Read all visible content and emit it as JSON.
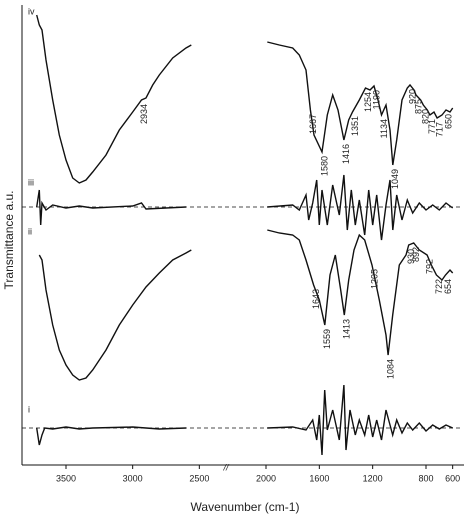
{
  "chart_data": {
    "type": "line",
    "xlabel": "Wavenumber (cm-1)",
    "ylabel": "Transmittance a.u.",
    "xlim": [
      3830,
      530
    ],
    "xticks": [
      3500,
      3000,
      2500,
      2000,
      1600,
      1200,
      800,
      600
    ],
    "ylim": [
      0,
      460
    ],
    "break_at": 2300,
    "break_label": "//",
    "color": "#111111",
    "series": [
      {
        "name": "iv",
        "x": [
          3720,
          3700,
          3680,
          3650,
          3600,
          3550,
          3500,
          3450,
          3400,
          3350,
          3300,
          3200,
          3100,
          3000,
          2934,
          2900,
          2850,
          2800,
          2700,
          2600,
          2560,
          null,
          1990,
          1900,
          1800,
          1750,
          1700,
          1667,
          1640,
          1580,
          1540,
          1500,
          1460,
          1416,
          1380,
          1351,
          1300,
          1254,
          1220,
          1190,
          1160,
          1134,
          1100,
          1070,
          1049,
          1020,
          980,
          940,
          920,
          890,
          875,
          840,
          820,
          790,
          771,
          740,
          717,
          680,
          650,
          620,
          600
        ],
        "values": [
          450,
          440,
          435,
          405,
          365,
          330,
          305,
          287,
          282,
          285,
          293,
          310,
          335,
          353,
          365,
          367,
          380,
          390,
          407,
          417,
          420,
          null,
          423,
          420,
          417,
          410,
          395,
          355,
          330,
          313,
          350,
          370,
          355,
          325,
          345,
          353,
          365,
          377,
          375,
          379,
          365,
          350,
          360,
          335,
          300,
          325,
          365,
          377,
          380,
          375,
          370,
          365,
          360,
          355,
          350,
          353,
          347,
          350,
          355,
          353,
          357
        ],
        "peaks": [
          2934,
          1667,
          1580,
          1416,
          1351,
          1254,
          1190,
          1134,
          1049,
          920,
          875,
          820,
          771,
          717,
          650
        ]
      },
      {
        "name": "iii",
        "baseline": 258,
        "x": [
          3720,
          3700,
          3690,
          3680,
          3650,
          3600,
          3500,
          3400,
          3300,
          3000,
          2934,
          2900,
          2600,
          null,
          1990,
          1800,
          1750,
          1700,
          1680,
          1650,
          1620,
          1600,
          1580,
          1540,
          1500,
          1450,
          1416,
          1390,
          1360,
          1330,
          1300,
          1260,
          1230,
          1200,
          1170,
          1134,
          1100,
          1070,
          1049,
          1020,
          980,
          940,
          900,
          850,
          800,
          750,
          700,
          650,
          600
        ],
        "values": [
          258,
          275,
          240,
          262,
          255,
          260,
          257,
          259,
          257,
          259,
          262,
          256,
          258,
          null,
          258,
          260,
          255,
          270,
          245,
          262,
          285,
          240,
          275,
          240,
          280,
          250,
          290,
          235,
          275,
          240,
          265,
          230,
          275,
          240,
          270,
          225,
          260,
          285,
          235,
          270,
          245,
          265,
          252,
          262,
          255,
          260,
          255,
          262,
          257
        ]
      },
      {
        "name": "ii",
        "x": [
          3700,
          3680,
          3650,
          3600,
          3550,
          3500,
          3450,
          3400,
          3350,
          3300,
          3200,
          3100,
          3000,
          2900,
          2800,
          2700,
          2600,
          2560,
          null,
          1990,
          1900,
          1800,
          1750,
          1700,
          1643,
          1600,
          1559,
          1520,
          1480,
          1440,
          1413,
          1380,
          1340,
          1300,
          1260,
          1205,
          1150,
          1100,
          1084,
          1050,
          1000,
          950,
          930,
          892,
          850,
          792,
          760,
          722,
          680,
          654,
          620,
          600
        ],
        "values": [
          210,
          205,
          175,
          140,
          115,
          100,
          90,
          85,
          87,
          95,
          115,
          140,
          160,
          178,
          192,
          205,
          212,
          215,
          null,
          235,
          232,
          230,
          225,
          205,
          180,
          165,
          140,
          190,
          210,
          175,
          150,
          185,
          215,
          230,
          225,
          200,
          165,
          130,
          110,
          150,
          200,
          210,
          220,
          222,
          215,
          210,
          200,
          190,
          185,
          190,
          195,
          192
        ],
        "peaks": [
          1643,
          1559,
          1413,
          1205,
          1084,
          930,
          892,
          792,
          722,
          654
        ]
      },
      {
        "name": "i",
        "baseline": 37,
        "x": [
          3720,
          3700,
          3680,
          3660,
          3600,
          3500,
          3400,
          3300,
          3000,
          2800,
          2600,
          null,
          1990,
          1800,
          1700,
          1650,
          1620,
          1600,
          1580,
          1560,
          1540,
          1500,
          1450,
          1416,
          1400,
          1370,
          1330,
          1300,
          1260,
          1230,
          1200,
          1170,
          1134,
          1100,
          1050,
          1020,
          980,
          940,
          900,
          850,
          800,
          750,
          700,
          650,
          600
        ],
        "values": [
          37,
          20,
          30,
          37,
          36,
          38,
          36,
          37,
          38,
          36,
          37,
          null,
          37,
          38,
          35,
          45,
          25,
          50,
          10,
          75,
          35,
          55,
          25,
          80,
          15,
          55,
          30,
          45,
          30,
          50,
          28,
          45,
          25,
          55,
          30,
          45,
          32,
          42,
          35,
          42,
          34,
          40,
          36,
          40,
          37
        ]
      }
    ]
  }
}
